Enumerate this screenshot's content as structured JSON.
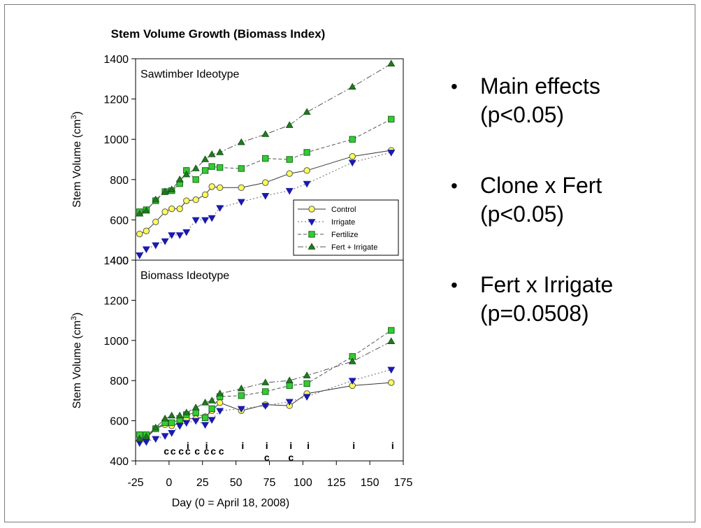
{
  "chart_data": {
    "type": "line",
    "title": "Stem Volume Growth (Biomass Index)",
    "xlabel": "Day (0 = April 18, 2008)",
    "ylabel": "Stem Volume (cm3)",
    "x_ticks": [
      "-25",
      "0",
      "25",
      "50",
      "75",
      "100",
      "125",
      "150",
      "175"
    ],
    "xlim": [
      -25,
      175
    ],
    "legend": {
      "placement": "bottom-right of top panel",
      "entries": [
        "Control",
        "Irrigate",
        "Fertilize",
        "Fert + Irrigate"
      ]
    },
    "colors": {
      "Control": "#ffff55",
      "Irrigate": "#1a1ab0",
      "Fertilize": "#33cc33",
      "Fert + Irrigate": "#1f7a1f"
    },
    "panels": [
      {
        "label": "Sawtimber Ideotype",
        "ylim": [
          400,
          1400
        ],
        "y_ticks": [
          "400",
          "600",
          "800",
          "1000",
          "1200",
          "1400"
        ],
        "series": [
          {
            "name": "Control",
            "x": [
              -22,
              -17,
              -10,
              -3,
              2,
              8,
              13,
              20,
              27,
              32,
              38,
              54,
              72,
              90,
              103,
              137,
              166
            ],
            "y": [
              530,
              545,
              590,
              640,
              655,
              655,
              695,
              700,
              725,
              765,
              760,
              760,
              785,
              830,
              845,
              915,
              945
            ]
          },
          {
            "name": "Irrigate",
            "x": [
              -22,
              -17,
              -10,
              -3,
              2,
              8,
              13,
              20,
              27,
              32,
              38,
              54,
              72,
              90,
              103,
              137,
              166
            ],
            "y": [
              425,
              455,
              475,
              495,
              525,
              525,
              540,
              600,
              600,
              610,
              660,
              690,
              720,
              745,
              780,
              885,
              935
            ]
          },
          {
            "name": "Fertilize",
            "x": [
              -22,
              -17,
              -10,
              -3,
              2,
              8,
              13,
              20,
              27,
              32,
              38,
              54,
              72,
              90,
              103,
              137,
              166
            ],
            "y": [
              640,
              650,
              695,
              740,
              745,
              780,
              845,
              800,
              845,
              865,
              860,
              855,
              905,
              900,
              935,
              1000,
              1100
            ]
          },
          {
            "name": "Fert + Irrigate",
            "x": [
              -22,
              -17,
              -10,
              -3,
              2,
              8,
              13,
              20,
              27,
              32,
              38,
              54,
              72,
              90,
              103,
              137,
              166
            ],
            "y": [
              630,
              645,
              700,
              740,
              750,
              800,
              825,
              855,
              900,
              925,
              935,
              985,
              1025,
              1070,
              1135,
              1260,
              1375
            ]
          }
        ]
      },
      {
        "label": "Biomass Ideotype",
        "ylim": [
          400,
          1400
        ],
        "y_ticks": [
          "400",
          "600",
          "800",
          "1000",
          "1200",
          "1400"
        ],
        "series": [
          {
            "name": "Control",
            "x": [
              -22,
              -17,
              -10,
              -3,
              2,
              8,
              13,
              20,
              27,
              32,
              38,
              54,
              72,
              90,
              103,
              137,
              166
            ],
            "y": [
              505,
              515,
              560,
              580,
              575,
              590,
              610,
              610,
              620,
              650,
              690,
              650,
              680,
              675,
              735,
              775,
              790
            ]
          },
          {
            "name": "Irrigate",
            "x": [
              -22,
              -17,
              -10,
              -3,
              2,
              8,
              13,
              20,
              27,
              32,
              38,
              54,
              72,
              90,
              103,
              137,
              166
            ],
            "y": [
              490,
              495,
              510,
              525,
              540,
              575,
              590,
              600,
              580,
              605,
              650,
              660,
              675,
              695,
              720,
              800,
              855
            ]
          },
          {
            "name": "Fertilize",
            "x": [
              -22,
              -17,
              -10,
              -3,
              2,
              8,
              13,
              20,
              27,
              32,
              38,
              54,
              72,
              90,
              103,
              137,
              166
            ],
            "y": [
              530,
              530,
              560,
              590,
              590,
              605,
              630,
              640,
              615,
              660,
              720,
              725,
              745,
              775,
              785,
              920,
              1050
            ]
          },
          {
            "name": "Fert + Irrigate",
            "x": [
              -22,
              -17,
              -10,
              -3,
              2,
              8,
              13,
              20,
              27,
              32,
              38,
              54,
              72,
              90,
              103,
              137,
              166
            ],
            "y": [
              510,
              520,
              565,
              610,
              625,
              625,
              640,
              665,
              690,
              700,
              735,
              760,
              790,
              800,
              825,
              895,
              995
            ]
          }
        ],
        "annotations_i": [
          {
            "x": 13,
            "label": "i"
          },
          {
            "x": 27,
            "label": "i"
          },
          {
            "x": 54,
            "label": "i"
          },
          {
            "x": 72,
            "label": "i"
          },
          {
            "x": 90,
            "label": "i"
          },
          {
            "x": 103,
            "label": "i"
          },
          {
            "x": 137,
            "label": "i"
          },
          {
            "x": 166,
            "label": "i"
          }
        ],
        "annotations_c": [
          {
            "x": -3,
            "label": "c"
          },
          {
            "x": 2,
            "label": "c"
          },
          {
            "x": 8,
            "label": "c"
          },
          {
            "x": 13,
            "label": "c"
          },
          {
            "x": 20,
            "label": "c"
          },
          {
            "x": 27,
            "label": "c"
          },
          {
            "x": 32,
            "label": "c"
          },
          {
            "x": 38,
            "label": "c"
          },
          {
            "x": 72,
            "label": "c"
          },
          {
            "x": 90,
            "label": "c"
          }
        ]
      }
    ]
  },
  "bullets": [
    {
      "line1": "Main effects",
      "line2": "(p<0.05)"
    },
    {
      "line1": "Clone x Fert",
      "line2": "(p<0.05)"
    },
    {
      "line1": "Fert x Irrigate",
      "line2": "(p=0.0508)"
    }
  ]
}
